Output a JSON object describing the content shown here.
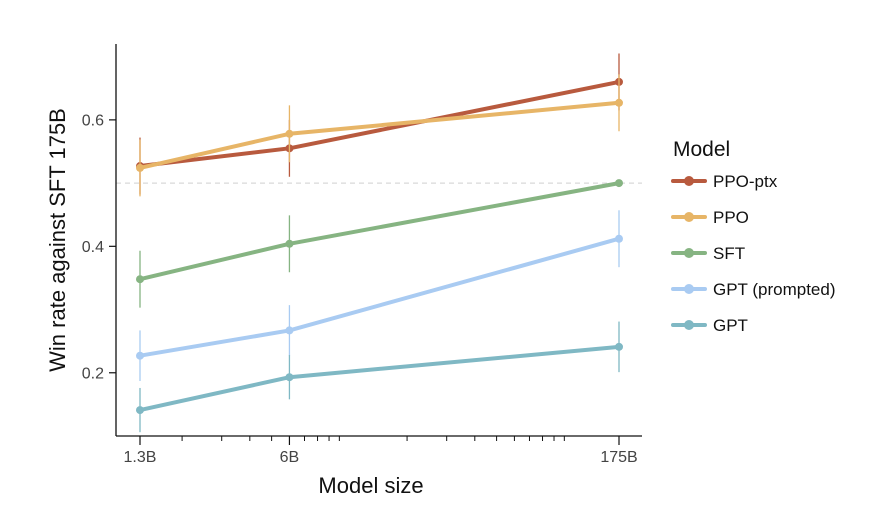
{
  "chart_data": {
    "type": "line",
    "xlabel": "Model size",
    "ylabel": "Win rate against SFT 175B",
    "x_scale": "log",
    "categories": [
      "1.3B",
      "6B",
      "175B"
    ],
    "x_values": [
      1.3,
      6,
      175
    ],
    "xlim": [
      1.3,
      175
    ],
    "ylim": [
      0.1,
      0.72
    ],
    "y_ticks": [
      "0.2",
      "0.4",
      "0.6"
    ],
    "y_tick_values": [
      0.2,
      0.4,
      0.6
    ],
    "reference_line": 0.5,
    "legend_title": "Model",
    "legend_position": "right",
    "series": [
      {
        "name": "PPO-ptx",
        "color": "#b85a3e",
        "values": [
          0.527,
          0.555,
          0.66
        ],
        "error": [
          0.045,
          0.045,
          0.045
        ]
      },
      {
        "name": "PPO",
        "color": "#e7b567",
        "values": [
          0.524,
          0.578,
          0.627
        ],
        "error": [
          0.045,
          0.045,
          0.045
        ]
      },
      {
        "name": "SFT",
        "color": "#86b482",
        "values": [
          0.348,
          0.404,
          0.5
        ],
        "error": [
          0.045,
          0.045,
          0.0
        ]
      },
      {
        "name": "GPT (prompted)",
        "color": "#a9cbf2",
        "values": [
          0.227,
          0.267,
          0.412
        ],
        "error": [
          0.04,
          0.04,
          0.045
        ]
      },
      {
        "name": "GPT",
        "color": "#7fb8c4",
        "values": [
          0.141,
          0.193,
          0.241
        ],
        "error": [
          0.035,
          0.035,
          0.04
        ]
      }
    ]
  }
}
